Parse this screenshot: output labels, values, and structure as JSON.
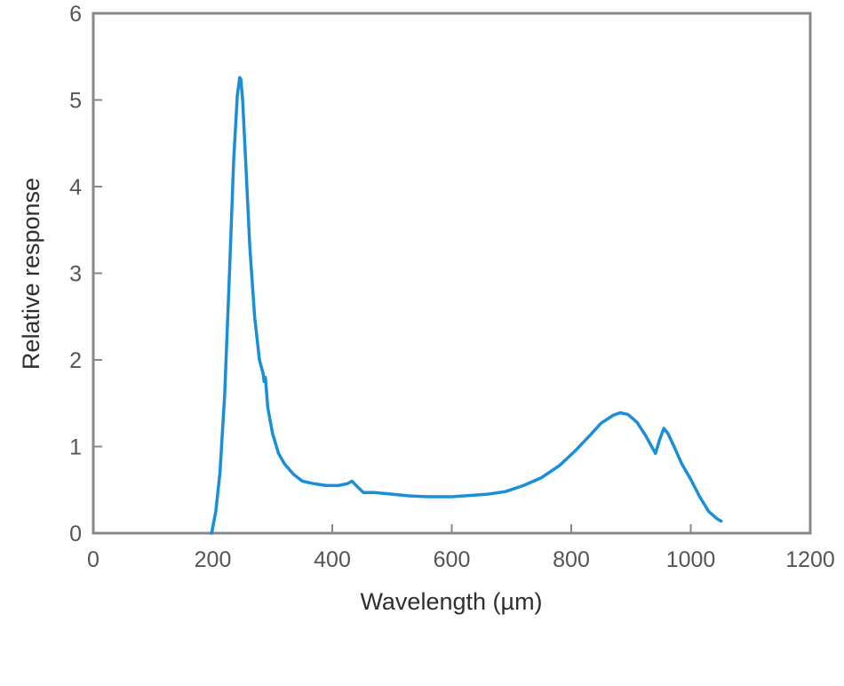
{
  "chart_data": {
    "type": "line",
    "title": "",
    "xlabel": "Wavelength (µm)",
    "ylabel": "Relative response",
    "xlim": [
      0,
      1200
    ],
    "ylim": [
      0,
      6
    ],
    "x_ticks": [
      0,
      200,
      400,
      600,
      800,
      1000,
      1200
    ],
    "y_ticks": [
      0,
      1,
      2,
      3,
      4,
      5,
      6
    ],
    "grid": false,
    "legend": null,
    "line_color": "#1a8fd8",
    "frame_color": "#888888",
    "series": [
      {
        "name": "Relative response",
        "x": [
          198,
          205,
          212,
          220,
          228,
          235,
          241,
          245,
          247,
          250,
          255,
          262,
          270,
          278,
          284,
          286,
          288,
          292,
          300,
          310,
          320,
          335,
          350,
          370,
          390,
          410,
          425,
          433,
          440,
          452,
          470,
          500,
          530,
          560,
          600,
          640,
          660,
          690,
          720,
          750,
          780,
          805,
          830,
          850,
          870,
          882,
          895,
          910,
          925,
          941,
          948,
          955,
          962,
          972,
          985,
          1000,
          1015,
          1030,
          1045,
          1051
        ],
        "y": [
          0.0,
          0.25,
          0.7,
          1.6,
          3.0,
          4.3,
          5.05,
          5.26,
          5.24,
          5.0,
          4.3,
          3.3,
          2.5,
          2.0,
          1.85,
          1.75,
          1.8,
          1.45,
          1.15,
          0.92,
          0.8,
          0.68,
          0.6,
          0.57,
          0.55,
          0.55,
          0.57,
          0.6,
          0.55,
          0.47,
          0.47,
          0.45,
          0.43,
          0.42,
          0.42,
          0.44,
          0.45,
          0.48,
          0.55,
          0.64,
          0.78,
          0.94,
          1.12,
          1.27,
          1.36,
          1.39,
          1.37,
          1.28,
          1.12,
          0.92,
          1.08,
          1.21,
          1.15,
          1.0,
          0.8,
          0.62,
          0.42,
          0.25,
          0.16,
          0.14
        ]
      }
    ]
  }
}
